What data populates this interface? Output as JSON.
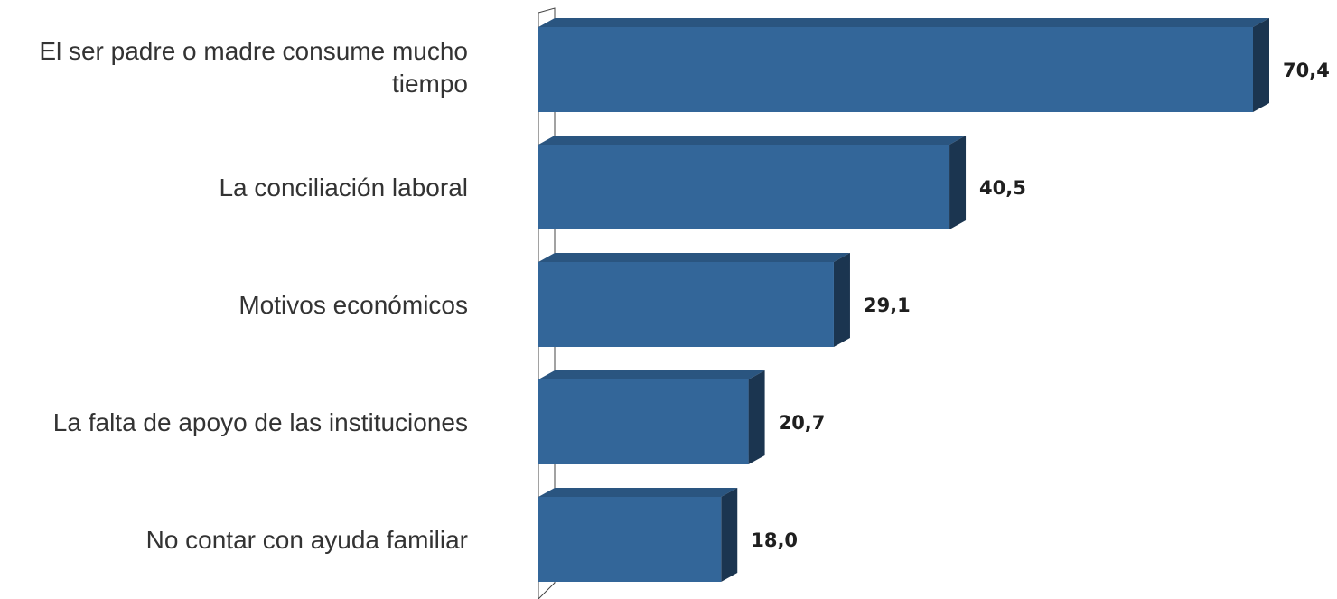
{
  "chart_data": {
    "type": "bar",
    "orientation": "horizontal",
    "style": "3d",
    "categories": [
      "El ser padre o madre consume mucho tiempo",
      "La conciliación laboral",
      "Motivos económicos",
      "La falta de apoyo de las instituciones",
      "No contar con ayuda familiar"
    ],
    "category_lines": [
      [
        "El ser padre o madre consume mucho",
        "tiempo"
      ],
      [
        "La conciliación laboral"
      ],
      [
        "Motivos económicos"
      ],
      [
        "La falta de apoyo de las instituciones"
      ],
      [
        "No contar con ayuda familiar"
      ]
    ],
    "values": [
      70.4,
      40.5,
      29.1,
      20.7,
      18.0
    ],
    "value_labels": [
      "70,4",
      "40,5",
      "29,1",
      "20,7",
      "18,0"
    ],
    "xlim": [
      0,
      70.4
    ],
    "grid": false,
    "legend": "none",
    "colors": {
      "bar_front": "#336699",
      "bar_top": "#2a5580",
      "bar_side": "#1b3550",
      "axis_wall": "#ffffff",
      "axis_stroke": "#444444"
    }
  }
}
